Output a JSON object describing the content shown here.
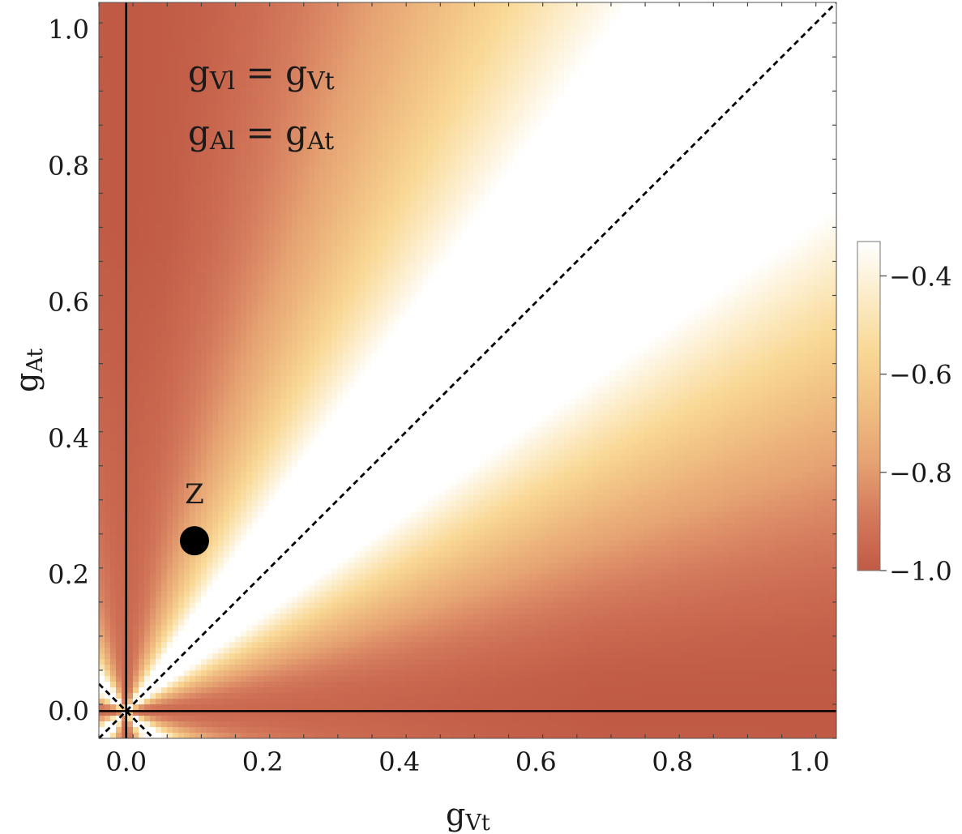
{
  "chart_data": {
    "type": "heatmap",
    "title": "",
    "xlabel": {
      "symbol": "g",
      "subscript": "Vt"
    },
    "ylabel": {
      "symbol": "g",
      "subscript": "At"
    },
    "xlim": [
      -0.04,
      1.04
    ],
    "ylim": [
      -0.04,
      1.04
    ],
    "xticks": [
      0.0,
      0.2,
      0.4,
      0.6,
      0.8,
      1.0
    ],
    "yticks": [
      0.0,
      0.2,
      0.4,
      0.6,
      0.8,
      1.0
    ],
    "xtick_labels": [
      "0.0",
      "0.2",
      "0.4",
      "0.6",
      "0.8",
      "1.0"
    ],
    "ytick_labels": [
      "0.0",
      "0.2",
      "0.4",
      "0.6",
      "0.8",
      "1.0"
    ],
    "colorbar": {
      "range": [
        -1.0,
        -0.33
      ],
      "ticks": [
        -1.0,
        -0.8,
        -0.6,
        -0.4
      ],
      "tick_labels": [
        "−1.0",
        "−0.8",
        "−0.6",
        "−0.4"
      ],
      "colors": [
        "#c05a45",
        "#d47a5c",
        "#e6a373",
        "#f0bf82",
        "#f9d895",
        "#fcecc8",
        "#ffffff"
      ]
    },
    "field": "-(1 - r^2) / (1 + r^2) with r = gAt / gVt; white along gAt = ±gVt, darkest near the axes",
    "annotations": [
      {
        "lhs_symbol": "g",
        "lhs_sub": "Vl",
        "rhs_symbol": "g",
        "rhs_sub": "Vt"
      },
      {
        "lhs_symbol": "g",
        "lhs_sub": "Al",
        "rhs_symbol": "g",
        "rhs_sub": "At"
      }
    ],
    "reference_lines": [
      {
        "type": "solid",
        "orientation": "vertical",
        "x": 0.0
      },
      {
        "type": "solid",
        "orientation": "horizontal",
        "y": 0.0
      },
      {
        "type": "dashed",
        "equation": "gAt = gVt"
      },
      {
        "type": "dashed",
        "equation": "gAt = -gVt"
      }
    ],
    "points": [
      {
        "label": "Z",
        "x": 0.1,
        "y": 0.25
      }
    ]
  }
}
